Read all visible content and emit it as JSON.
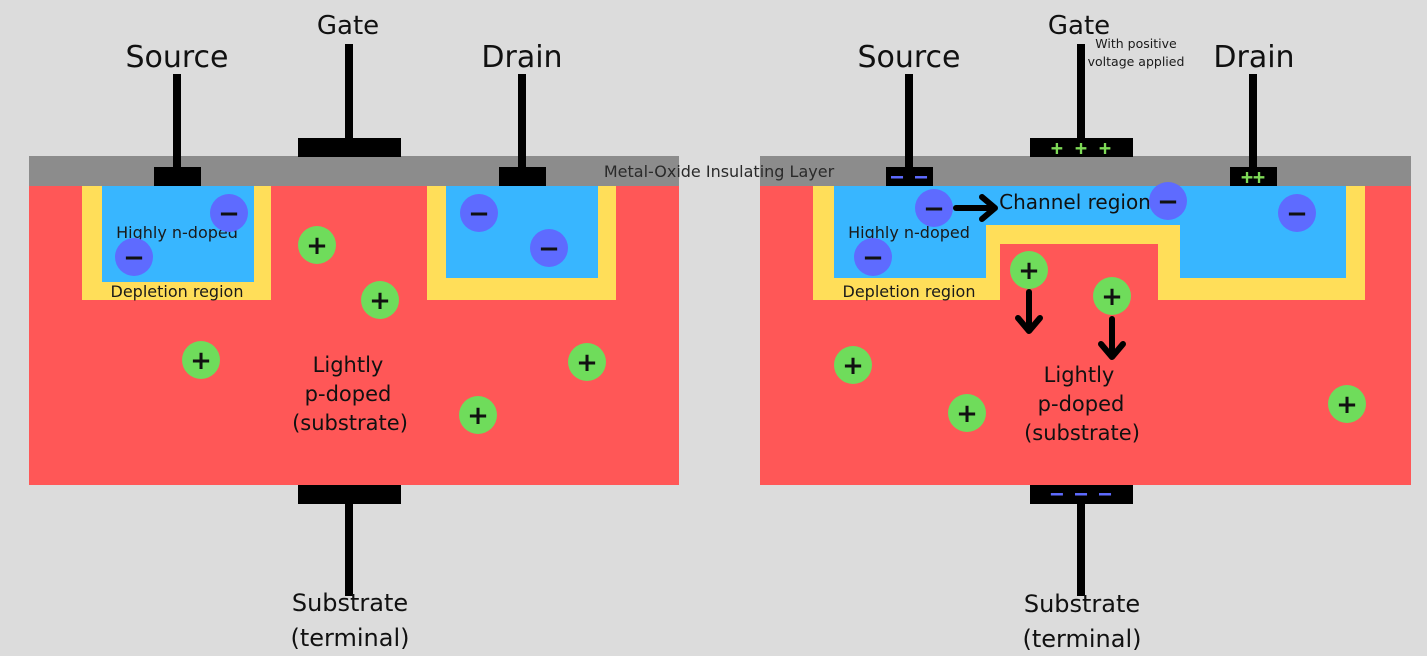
{
  "colors": {
    "background": "#dcdcdc",
    "substrate": "#ff5757",
    "n_region": "#38b6ff",
    "depletion": "#ffde59",
    "oxide": "#8c8c8c",
    "terminal": "#000000",
    "electron": "#5e6bff",
    "hole": "#6fdc5b",
    "plus_charge": "#7ed957",
    "minus_charge": "#5e6bff"
  },
  "symbols": {
    "electron": "−",
    "hole": "+"
  },
  "left": {
    "source": "Source",
    "gate": "Gate",
    "drain": "Drain",
    "highly_n_doped": "Highly n-doped",
    "depletion_region": "Depletion region",
    "substrate_line1": "Lightly",
    "substrate_line2": "p-doped",
    "substrate_line3": "(substrate)",
    "substrate_terminal_line1": "Substrate",
    "substrate_terminal_line2": "(terminal)"
  },
  "oxide_label": "Metal-Oxide Insulating Layer",
  "right": {
    "source": "Source",
    "gate": "Gate",
    "gate_note_line1": "With positive",
    "gate_note_line2": "voltage applied",
    "drain": "Drain",
    "channel_region": "Channel region",
    "highly_n_doped": "Highly n-doped",
    "depletion_region": "Depletion region",
    "substrate_line1": "Lightly",
    "substrate_line2": "p-doped",
    "substrate_line3": "(substrate)",
    "substrate_terminal_line1": "Substrate",
    "substrate_terminal_line2": "(terminal)",
    "gate_plate_charges": "+ + +",
    "drain_plate_charges": "++",
    "source_plate_charges": "– –",
    "substrate_plate_charges": "–   –   –"
  }
}
